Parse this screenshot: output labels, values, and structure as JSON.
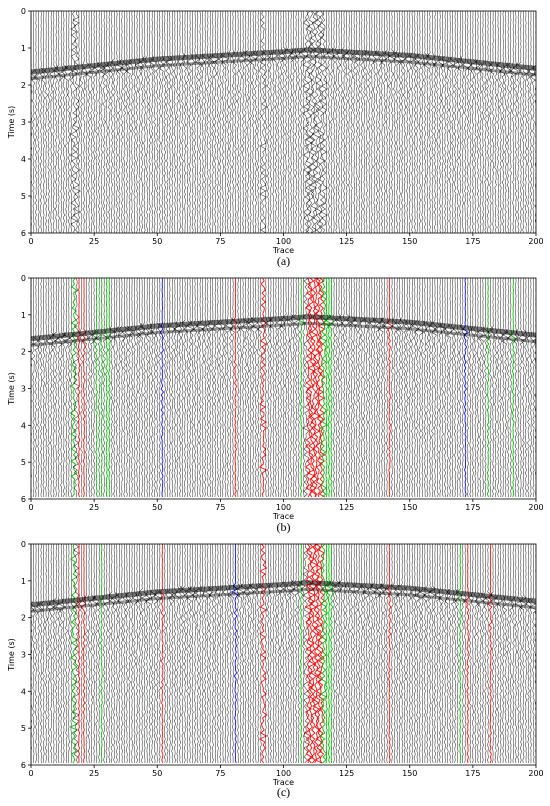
{
  "figure": {
    "background": "#ffffff",
    "trace_color": "#000000",
    "flag_colors": {
      "red": "#ff0000",
      "green": "#00b400",
      "blue": "#0000ff"
    }
  },
  "chart_data": [
    {
      "type": "line",
      "caption": "(a)",
      "xlabel": "Trace",
      "ylabel": "Time (s)",
      "xlim": [
        0,
        200
      ],
      "ylim": [
        6,
        0
      ],
      "xticks": [
        "0",
        "25",
        "50",
        "75",
        "100",
        "125",
        "150",
        "175",
        "200"
      ],
      "yticks": [
        "0",
        "1",
        "2",
        "3",
        "4",
        "5",
        "6"
      ],
      "first_break_curve": {
        "x": [
          0,
          50,
          100,
          110,
          150,
          200
        ],
        "y": [
          1.65,
          1.3,
          1.1,
          1.05,
          1.2,
          1.55
        ]
      },
      "highlighted_traces": {
        "red": [],
        "green": [],
        "blue": []
      }
    },
    {
      "type": "line",
      "caption": "(b)",
      "xlabel": "Trace",
      "ylabel": "Time (s)",
      "xlim": [
        0,
        200
      ],
      "ylim": [
        6,
        0
      ],
      "xticks": [
        "0",
        "25",
        "50",
        "75",
        "100",
        "125",
        "150",
        "175",
        "200"
      ],
      "yticks": [
        "0",
        "1",
        "2",
        "3",
        "4",
        "5",
        "6"
      ],
      "first_break_curve": {
        "x": [
          0,
          50,
          100,
          110,
          150,
          200
        ],
        "y": [
          1.65,
          1.3,
          1.1,
          1.05,
          1.2,
          1.55
        ]
      },
      "highlighted_traces": {
        "red": [
          19,
          21,
          81,
          92,
          110,
          111,
          112,
          113,
          114,
          115,
          142
        ],
        "green": [
          17,
          26,
          28,
          30,
          31,
          107,
          116,
          117,
          118,
          119,
          181,
          191
        ],
        "blue": [
          52,
          172
        ]
      }
    },
    {
      "type": "line",
      "caption": "(c)",
      "xlabel": "Trace",
      "ylabel": "Time (s)",
      "xlim": [
        0,
        200
      ],
      "ylim": [
        6,
        0
      ],
      "xticks": [
        "0",
        "25",
        "50",
        "75",
        "100",
        "125",
        "150",
        "175",
        "200"
      ],
      "yticks": [
        "0",
        "1",
        "2",
        "3",
        "4",
        "5",
        "6"
      ],
      "first_break_curve": {
        "x": [
          0,
          50,
          100,
          110,
          150,
          200
        ],
        "y": [
          1.65,
          1.3,
          1.1,
          1.05,
          1.2,
          1.55
        ]
      },
      "highlighted_traces": {
        "red": [
          19,
          21,
          52,
          92,
          110,
          111,
          112,
          113,
          114,
          115,
          142,
          173,
          182
        ],
        "green": [
          17,
          28,
          107,
          116,
          117,
          118,
          119,
          170
        ],
        "blue": [
          81
        ]
      }
    }
  ]
}
